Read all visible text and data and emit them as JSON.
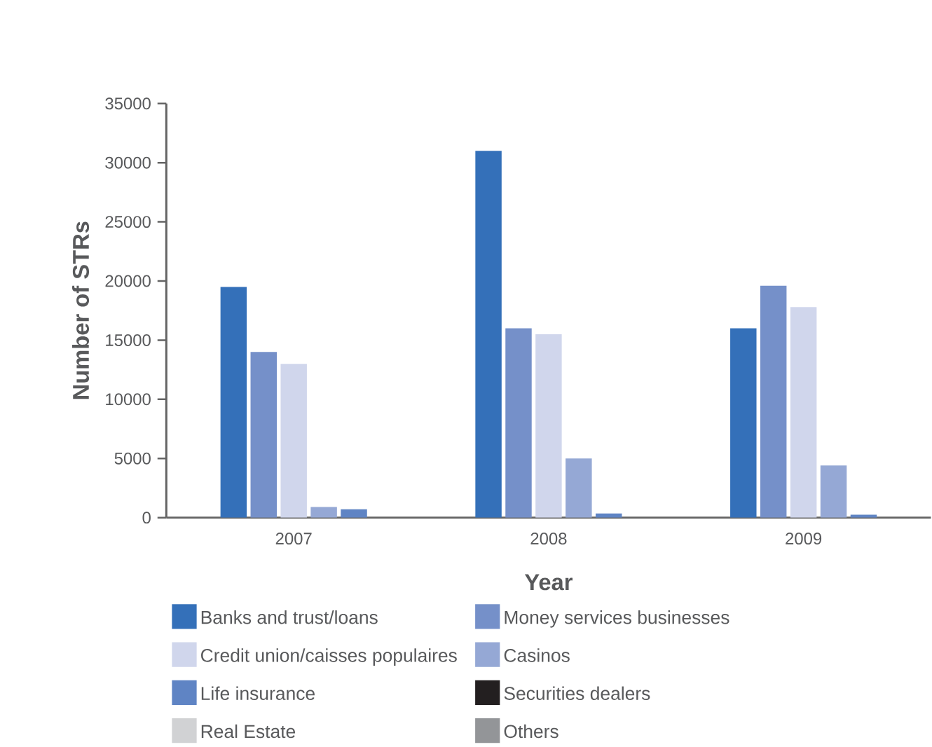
{
  "chart_data": {
    "type": "bar",
    "xlabel": "Year",
    "ylabel": "Number of STRs",
    "categories": [
      "2007",
      "2008",
      "2009"
    ],
    "ylim": [
      0,
      35000
    ],
    "yticks": [
      0,
      5000,
      10000,
      15000,
      20000,
      25000,
      30000,
      35000
    ],
    "legend": "bottom",
    "grid": false,
    "series": [
      {
        "name": "Banks and trust/loans",
        "color": "#3470b9",
        "values": [
          19500,
          31000,
          16000
        ]
      },
      {
        "name": "Money services businesses",
        "color": "#7590c9",
        "values": [
          14000,
          16000,
          19600
        ]
      },
      {
        "name": "Credit union/caisses populaires",
        "color": "#d0d6ec",
        "values": [
          13000,
          15500,
          17800
        ]
      },
      {
        "name": "Casinos",
        "color": "#95a8d5",
        "values": [
          900,
          5000,
          4400
        ]
      },
      {
        "name": "Life insurance",
        "color": "#5f84c4",
        "values": [
          700,
          350,
          250
        ]
      },
      {
        "name": "Securities dealers",
        "color": "#231f20",
        "values": [
          null,
          null,
          null
        ]
      },
      {
        "name": "Real Estate",
        "color": "#d1d2d4",
        "values": [
          null,
          null,
          null
        ]
      },
      {
        "name": "Others",
        "color": "#939598",
        "values": [
          null,
          null,
          null
        ]
      }
    ]
  }
}
